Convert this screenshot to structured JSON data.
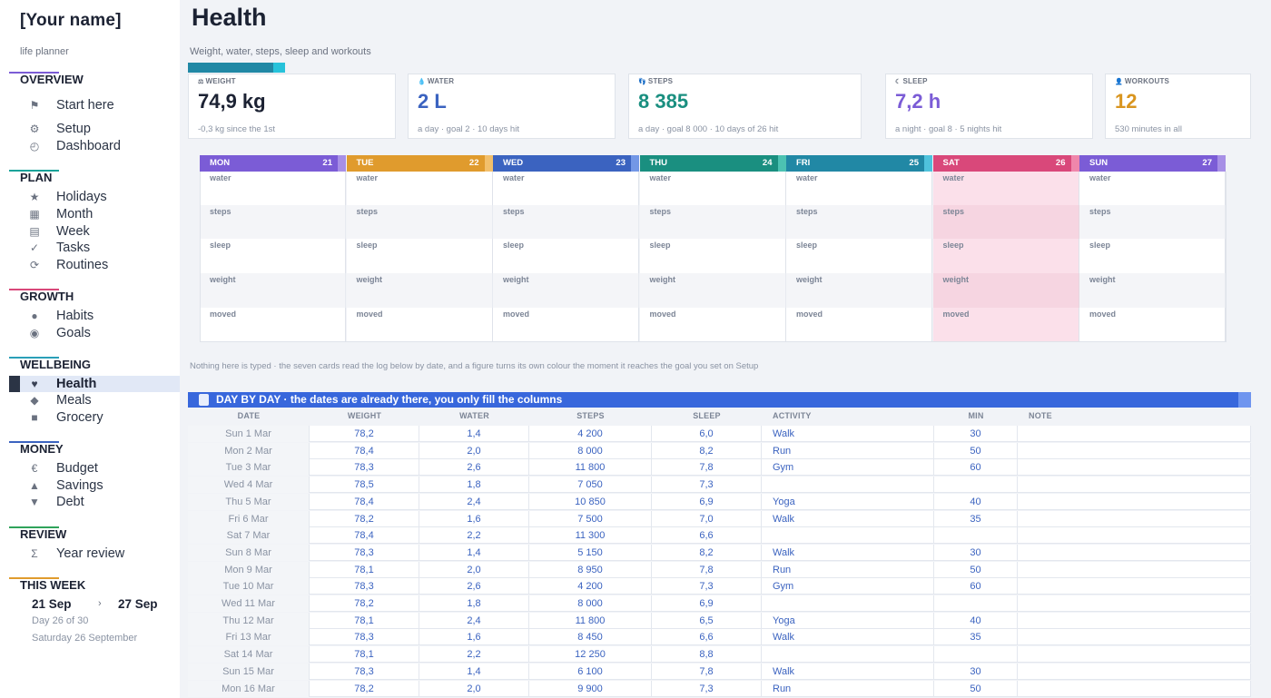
{
  "app": {
    "name": "[Your name]",
    "subtitle": "life planner"
  },
  "sidebar": {
    "sections": [
      {
        "title": "OVERVIEW",
        "color": "#7b5cd6",
        "items": [
          {
            "label": "Start here",
            "icon": "flag-icon",
            "glyph": "⚑"
          },
          {
            "label": "Setup",
            "icon": "gear-icon",
            "glyph": "⚙"
          },
          {
            "label": "Dashboard",
            "icon": "gauge-icon",
            "glyph": "◴"
          }
        ]
      },
      {
        "title": "PLAN",
        "color": "#1aa39a",
        "items": [
          {
            "label": "Holidays",
            "icon": "star-icon",
            "glyph": "★"
          },
          {
            "label": "Month",
            "icon": "calendar-grid-icon",
            "glyph": "▦"
          },
          {
            "label": "Week",
            "icon": "list-icon",
            "glyph": "▤"
          },
          {
            "label": "Tasks",
            "icon": "check-icon",
            "glyph": "✓"
          },
          {
            "label": "Routines",
            "icon": "refresh-icon",
            "glyph": "⟳"
          }
        ]
      },
      {
        "title": "GROWTH",
        "color": "#d9487a",
        "items": [
          {
            "label": "Habits",
            "icon": "dot-icon",
            "glyph": "●"
          },
          {
            "label": "Goals",
            "icon": "target-icon",
            "glyph": "◉"
          }
        ]
      },
      {
        "title": "WELLBEING",
        "color": "#2a9fb8",
        "items": [
          {
            "label": "Health",
            "icon": "heart-icon",
            "glyph": "♥",
            "active": true
          },
          {
            "label": "Meals",
            "icon": "diamond-icon",
            "glyph": "◆"
          },
          {
            "label": "Grocery",
            "icon": "square-icon",
            "glyph": "■"
          }
        ]
      },
      {
        "title": "MONEY",
        "color": "#3b63c0",
        "items": [
          {
            "label": "Budget",
            "icon": "euro-icon",
            "glyph": "€"
          },
          {
            "label": "Savings",
            "icon": "triangle-up-icon",
            "glyph": "▲"
          },
          {
            "label": "Debt",
            "icon": "triangle-down-icon",
            "glyph": "▼"
          }
        ]
      },
      {
        "title": "REVIEW",
        "color": "#2fa35a",
        "items": [
          {
            "label": "Year review",
            "icon": "sigma-icon",
            "glyph": "Σ"
          }
        ]
      },
      {
        "title": "THIS WEEK",
        "color": "#e09b2d",
        "items": []
      }
    ],
    "this_week": {
      "start": "21 Sep",
      "arrow": "›",
      "end": "27 Sep",
      "progress": "Day 26 of 30",
      "today": "Saturday 26 September"
    }
  },
  "page": {
    "title": "Health",
    "subtitle": "Weight, water, steps, sleep and workouts"
  },
  "stats": [
    {
      "label": "WEIGHT",
      "icon": "scale-icon",
      "glyph": "⚖",
      "value": "74,9 kg",
      "color": "#1c2233",
      "sub": "-0,3 kg since the 1st"
    },
    {
      "label": "WATER",
      "icon": "drop-icon",
      "glyph": "💧",
      "value": "2 L",
      "color": "#3b63c0",
      "sub": "a day  ·  goal 2  ·  10 days hit"
    },
    {
      "label": "STEPS",
      "icon": "footsteps-icon",
      "glyph": "👣",
      "value": "8 385",
      "color": "#1a8f80",
      "sub": "a day  ·  goal 8 000  ·  10 days of 26 hit"
    },
    {
      "label": "SLEEP",
      "icon": "moon-icon",
      "glyph": "☾",
      "value": "7,2 h",
      "color": "#7b5cd6",
      "sub": "a night  ·  goal 8  ·  5 nights hit"
    },
    {
      "label": "WORKOUTS",
      "icon": "person-icon",
      "glyph": "👤",
      "value": "12",
      "color": "#d9951f",
      "sub": "530 minutes in all"
    }
  ],
  "week": {
    "row_labels": [
      "water",
      "steps",
      "sleep",
      "weight",
      "moved"
    ],
    "days": [
      {
        "name": "MON",
        "date": "21",
        "color": "#7b5cd6",
        "tail": "#a78fe6"
      },
      {
        "name": "TUE",
        "date": "22",
        "color": "#e09b2d",
        "tail": "#f2bf6b"
      },
      {
        "name": "WED",
        "date": "23",
        "color": "#3b63c0",
        "tail": "#7397e6"
      },
      {
        "name": "THU",
        "date": "24",
        "color": "#1a8f80",
        "tail": "#4cc2b2"
      },
      {
        "name": "FRI",
        "date": "25",
        "color": "#2188a5",
        "tail": "#4fc2dc"
      },
      {
        "name": "SAT",
        "date": "26",
        "color": "#d9487a",
        "tail": "#ef86ab"
      },
      {
        "name": "SUN",
        "date": "27",
        "color": "#7b5cd6",
        "tail": "#a78fe6"
      }
    ]
  },
  "note": "Nothing here is typed · the seven cards read the log below by date, and a figure turns its own colour the moment it reaches the goal you set on Setup",
  "log": {
    "title": "DAY BY DAY  ·  the dates are already there, you only fill the columns",
    "columns": [
      "DATE",
      "WEIGHT",
      "WATER",
      "STEPS",
      "SLEEP",
      "ACTIVITY",
      "MIN",
      "NOTE"
    ],
    "rows": [
      [
        "Sun 1 Mar",
        "78,2",
        "1,4",
        "4 200",
        "6,0",
        "Walk",
        "30",
        ""
      ],
      [
        "Mon 2 Mar",
        "78,4",
        "2,0",
        "8 000",
        "8,2",
        "Run",
        "50",
        ""
      ],
      [
        "Tue 3 Mar",
        "78,3",
        "2,6",
        "11 800",
        "7,8",
        "Gym",
        "60",
        ""
      ],
      [
        "Wed 4 Mar",
        "78,5",
        "1,8",
        "7 050",
        "7,3",
        "",
        "",
        ""
      ],
      [
        "Thu 5 Mar",
        "78,4",
        "2,4",
        "10 850",
        "6,9",
        "Yoga",
        "40",
        ""
      ],
      [
        "Fri 6 Mar",
        "78,2",
        "1,6",
        "7 500",
        "7,0",
        "Walk",
        "35",
        ""
      ],
      [
        "Sat 7 Mar",
        "78,4",
        "2,2",
        "11 300",
        "6,6",
        "",
        "",
        ""
      ],
      [
        "Sun 8 Mar",
        "78,3",
        "1,4",
        "5 150",
        "8,2",
        "Walk",
        "30",
        ""
      ],
      [
        "Mon 9 Mar",
        "78,1",
        "2,0",
        "8 950",
        "7,8",
        "Run",
        "50",
        ""
      ],
      [
        "Tue 10 Mar",
        "78,3",
        "2,6",
        "4 200",
        "7,3",
        "Gym",
        "60",
        ""
      ],
      [
        "Wed 11 Mar",
        "78,2",
        "1,8",
        "8 000",
        "6,9",
        "",
        "",
        ""
      ],
      [
        "Thu 12 Mar",
        "78,1",
        "2,4",
        "11 800",
        "6,5",
        "Yoga",
        "40",
        ""
      ],
      [
        "Fri 13 Mar",
        "78,3",
        "1,6",
        "8 450",
        "6,6",
        "Walk",
        "35",
        ""
      ],
      [
        "Sat 14 Mar",
        "78,1",
        "2,2",
        "12 250",
        "8,8",
        "",
        "",
        ""
      ],
      [
        "Sun 15 Mar",
        "78,3",
        "1,4",
        "6 100",
        "7,8",
        "Walk",
        "30",
        ""
      ],
      [
        "Mon 16 Mar",
        "78,2",
        "2,0",
        "9 900",
        "7,3",
        "Run",
        "50",
        ""
      ]
    ]
  }
}
